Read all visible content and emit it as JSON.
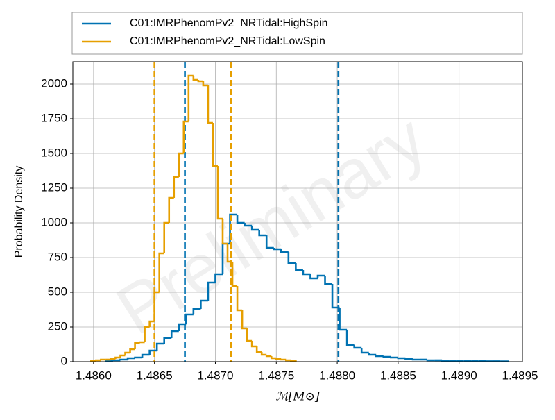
{
  "chart_data": {
    "type": "histogram",
    "xlabel": "ℳ[M⊙]",
    "ylabel": "Probability Density",
    "watermark": "Preliminary",
    "grid": true,
    "legend": "upper center",
    "xlim": [
      1.48583,
      1.48952
    ],
    "ylim": [
      0,
      2160
    ],
    "xticks": [
      {
        "value": 1.486,
        "label": "1.4860"
      },
      {
        "value": 1.4865,
        "label": "1.4865"
      },
      {
        "value": 1.487,
        "label": "1.4870"
      },
      {
        "value": 1.4875,
        "label": "1.4875"
      },
      {
        "value": 1.488,
        "label": "1.4880"
      },
      {
        "value": 1.4885,
        "label": "1.4885"
      },
      {
        "value": 1.489,
        "label": "1.4890"
      },
      {
        "value": 1.4895,
        "label": "1.4895"
      }
    ],
    "yticks": [
      0,
      250,
      500,
      750,
      1000,
      1250,
      1500,
      1750,
      2000
    ],
    "series": [
      {
        "name": "C01:IMRPhenomPv2_NRTidal:HighSpin",
        "color": "#0072b2",
        "bins": [
          1.4861,
          1.48616,
          1.48622,
          1.48628,
          1.48634,
          1.4864,
          1.48646,
          1.48652,
          1.48658,
          1.48664,
          1.4867,
          1.48676,
          1.48682,
          1.48688,
          1.48694,
          1.487,
          1.48706,
          1.48712,
          1.48718,
          1.48724,
          1.4873,
          1.48736,
          1.48742,
          1.48748,
          1.48754,
          1.4876,
          1.48766,
          1.48772,
          1.48778,
          1.48784,
          1.4879,
          1.48796,
          1.48802,
          1.48808,
          1.48814,
          1.4882,
          1.48826,
          1.48832,
          1.48838,
          1.48844,
          1.4885,
          1.48856,
          1.48862,
          1.48868,
          1.48874,
          1.4888,
          1.48886,
          1.48892,
          1.48898,
          1.48904,
          1.4891,
          1.48916,
          1.48922,
          1.48928,
          1.48934,
          1.4894
        ],
        "values": [
          5,
          10,
          15,
          25,
          30,
          50,
          80,
          130,
          170,
          220,
          270,
          340,
          380,
          440,
          570,
          630,
          850,
          1060,
          1000,
          980,
          950,
          910,
          820,
          810,
          790,
          710,
          660,
          630,
          600,
          620,
          560,
          390,
          230,
          120,
          100,
          65,
          50,
          40,
          35,
          30,
          25,
          20,
          15,
          15,
          10,
          10,
          8,
          7,
          6,
          6,
          5,
          4,
          3,
          3,
          2
        ],
        "vlines": [
          1.48675,
          1.48801
        ]
      },
      {
        "name": "C01:IMRPhenomPv2_NRTidal:LowSpin",
        "color": "#e69f00",
        "bins": [
          1.48598,
          1.48602,
          1.48606,
          1.4861,
          1.48614,
          1.48618,
          1.48622,
          1.48626,
          1.4863,
          1.48634,
          1.48638,
          1.48642,
          1.48646,
          1.4865,
          1.48654,
          1.48658,
          1.48662,
          1.48666,
          1.4867,
          1.48674,
          1.48678,
          1.48682,
          1.48686,
          1.4869,
          1.48694,
          1.48698,
          1.48702,
          1.48706,
          1.4871,
          1.48714,
          1.48718,
          1.48722,
          1.48726,
          1.4873,
          1.48734,
          1.48738,
          1.48742,
          1.48746,
          1.4875,
          1.48754,
          1.48758,
          1.48762,
          1.48766
        ],
        "values": [
          5,
          10,
          15,
          15,
          20,
          30,
          45,
          65,
          90,
          135,
          140,
          250,
          290,
          500,
          780,
          1000,
          1180,
          1330,
          1500,
          1730,
          2060,
          2030,
          2020,
          1990,
          1720,
          1410,
          1030,
          850,
          720,
          545,
          370,
          240,
          150,
          110,
          70,
          50,
          40,
          25,
          20,
          15,
          10,
          5
        ],
        "vlines": [
          1.4865,
          1.48713
        ]
      }
    ]
  }
}
